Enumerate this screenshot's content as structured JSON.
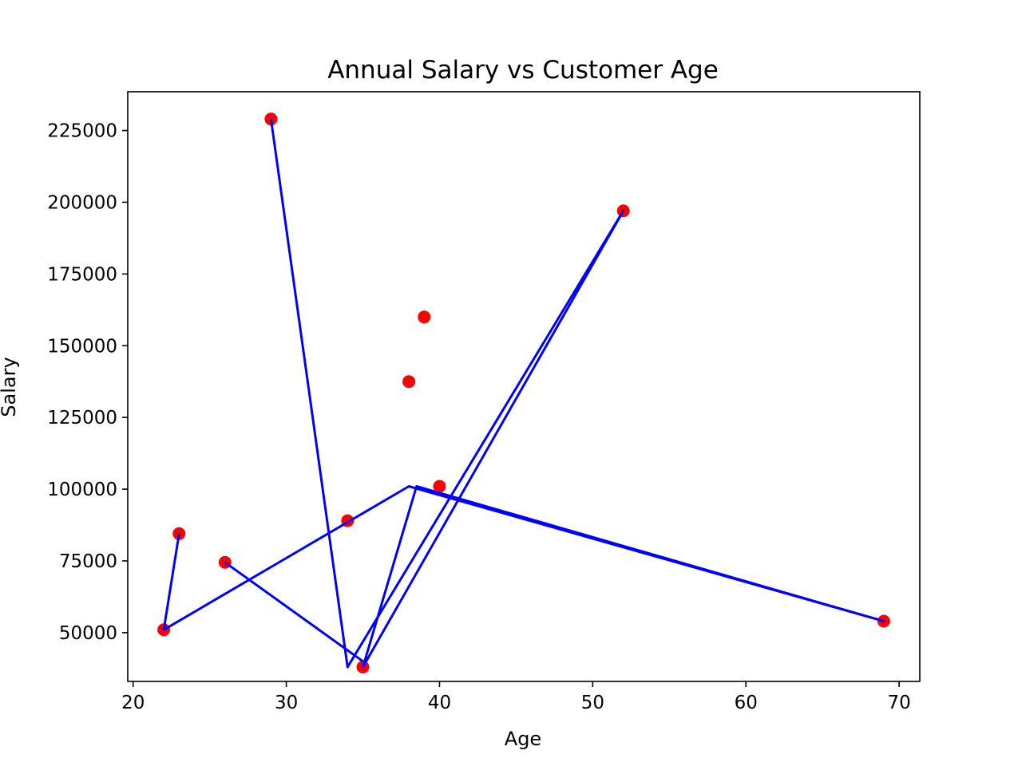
{
  "chart_data": {
    "type": "scatter",
    "title": "Annual Salary vs Customer Age",
    "xlabel": "Age",
    "ylabel": "Salary",
    "xlim": [
      19.65,
      71.35
    ],
    "ylim": [
      33000,
      238500
    ],
    "x_ticks": [
      20,
      30,
      40,
      50,
      60,
      70
    ],
    "y_ticks": [
      50000,
      75000,
      100000,
      125000,
      150000,
      175000,
      200000,
      225000
    ],
    "x_tick_labels": [
      "20",
      "30",
      "40",
      "50",
      "60",
      "70"
    ],
    "y_tick_labels": [
      "50000",
      "75000",
      "100000",
      "125000",
      "150000",
      "175000",
      "200000",
      "225000"
    ],
    "grid": false,
    "scatter": {
      "color": "#ff0000",
      "x": [
        29,
        52,
        39,
        38,
        40,
        34,
        23,
        26,
        22,
        69,
        35
      ],
      "y": [
        229000,
        197000,
        160000,
        137500,
        101000,
        89000,
        84500,
        74500,
        51000,
        54000,
        38000
      ]
    },
    "line": {
      "color": "#0000ff",
      "x": [
        29,
        34,
        52,
        35,
        38.5,
        69,
        38,
        22,
        23
      ],
      "y": [
        229000,
        38000,
        197000,
        38000,
        101000,
        54000,
        101000,
        51000,
        84500
      ],
      "x2": [
        26,
        35
      ],
      "y2": [
        74500,
        40000
      ]
    }
  }
}
